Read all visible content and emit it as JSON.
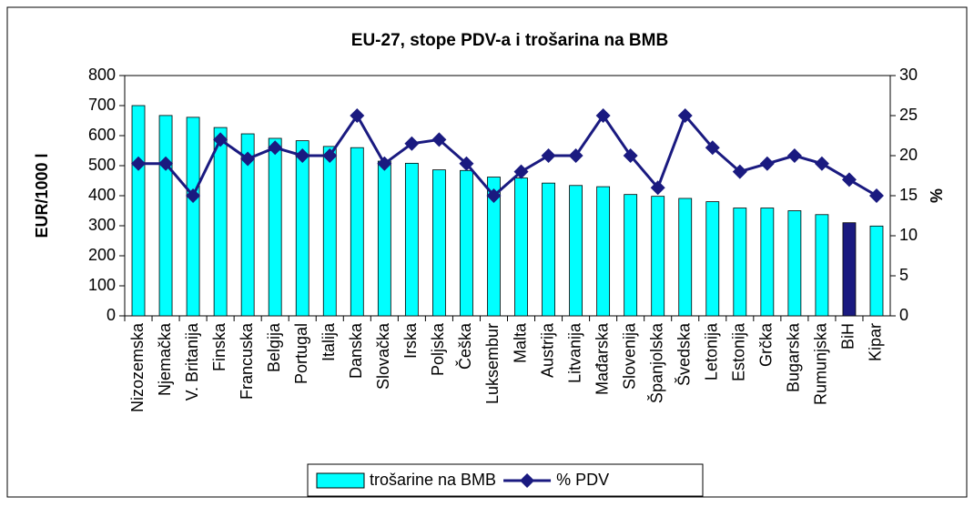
{
  "chart_data": {
    "type": "bar_line",
    "title": "EU-27, stope PDV-a i trošarina na BMB",
    "y_label": "EUR/1000 l",
    "y2_label": "%",
    "categories": [
      "Nizozemska",
      "Njemačka",
      "V. Britanija",
      "Finska",
      "Francuska",
      "Belgija",
      "Portugal",
      "Italija",
      "Danska",
      "Slovačka",
      "Irska",
      "Poljska",
      "Češka",
      "Luksembur",
      "Malta",
      "Austrija",
      "Litvanija",
      "Mađarska",
      "Slovenija",
      "Španjolska",
      "Švedska",
      "Letonija",
      "Estonija",
      "Grčka",
      "Bugarska",
      "Rumunjska",
      "BiH",
      "Kipar"
    ],
    "series": [
      {
        "name": "trošarine na BMB",
        "type": "bar",
        "axis": "y",
        "color": "#00ffff",
        "colors": [
          "#00ffff",
          "#00ffff",
          "#00ffff",
          "#00ffff",
          "#00ffff",
          "#00ffff",
          "#00ffff",
          "#00ffff",
          "#00ffff",
          "#00ffff",
          "#00ffff",
          "#00ffff",
          "#00ffff",
          "#00ffff",
          "#00ffff",
          "#00ffff",
          "#00ffff",
          "#00ffff",
          "#00ffff",
          "#00ffff",
          "#00ffff",
          "#00ffff",
          "#00ffff",
          "#00ffff",
          "#00ffff",
          "#00ffff",
          "#1a1a80",
          "#00ffff"
        ],
        "values": [
          700,
          667,
          661,
          627,
          606,
          591,
          583,
          564,
          560,
          515,
          508,
          486,
          484,
          462,
          459,
          442,
          434,
          430,
          404,
          398,
          391,
          380,
          359,
          359,
          350,
          337,
          310,
          299
        ]
      },
      {
        "name": "% PDV",
        "type": "line",
        "axis": "y2",
        "color": "#1a1a80",
        "values": [
          19,
          19,
          15,
          22,
          19.6,
          21,
          20,
          20,
          25,
          19,
          21.5,
          22,
          19,
          15,
          18,
          20,
          20,
          25,
          20,
          16,
          25,
          21,
          18,
          19,
          20,
          19,
          17,
          15
        ]
      }
    ],
    "ylim": [
      0,
      800
    ],
    "yticks": [
      0,
      100,
      200,
      300,
      400,
      500,
      600,
      700,
      800
    ],
    "y2lim": [
      0,
      30
    ],
    "y2ticks": [
      0,
      5,
      10,
      15,
      20,
      25,
      30
    ],
    "grid": false,
    "legend": "bottom"
  }
}
